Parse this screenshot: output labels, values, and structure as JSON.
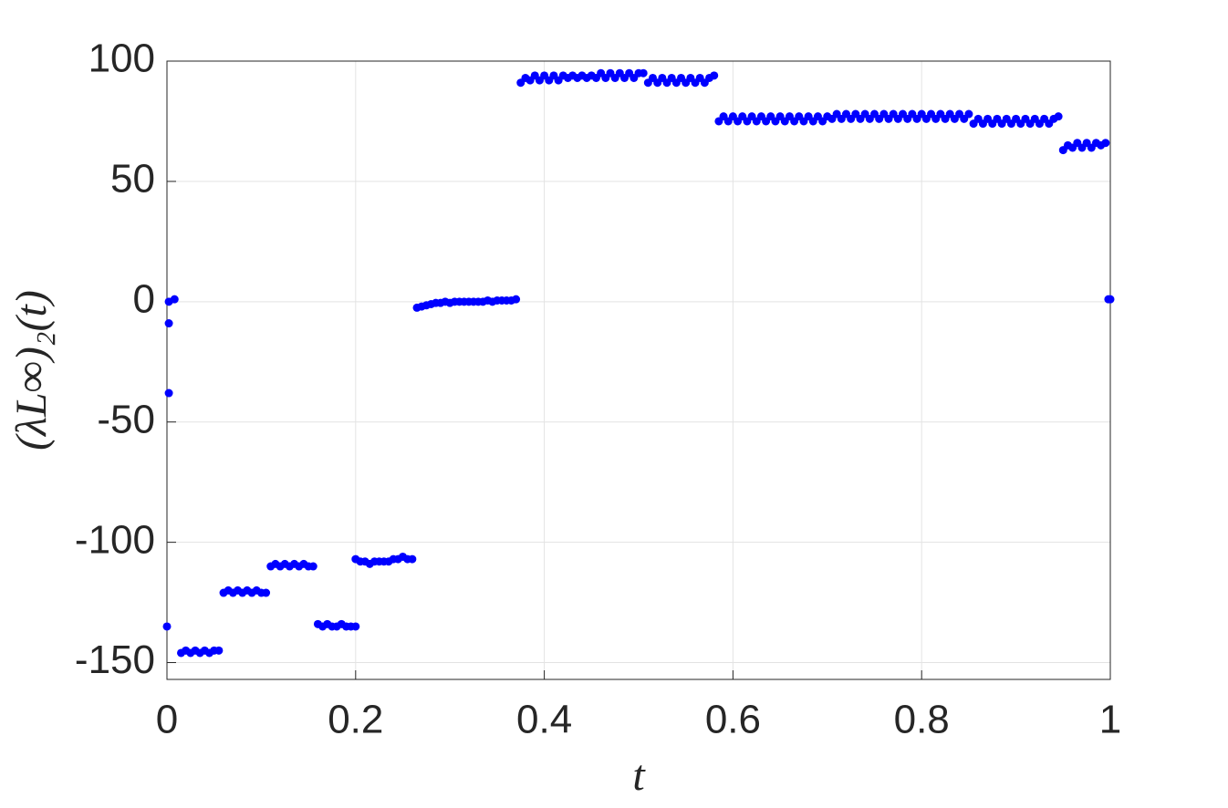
{
  "chart_data": {
    "type": "scatter",
    "x_label": "t",
    "y_label": "(λL∞)₂(t)",
    "xlim": [
      0,
      1
    ],
    "xticks": [
      0,
      0.2,
      0.4,
      0.6,
      0.8,
      1
    ],
    "ylim": [
      -157,
      100
    ],
    "yticks": [
      -150,
      -100,
      -50,
      0,
      50,
      100
    ],
    "grid": true,
    "series": [
      {
        "color": "#0000ff",
        "x": [
          0,
          0.002,
          0.002,
          0.002,
          0.008,
          0.015,
          0.02,
          0.025,
          0.03,
          0.035,
          0.04,
          0.045,
          0.05,
          0.055,
          0.06,
          0.065,
          0.07,
          0.075,
          0.08,
          0.085,
          0.09,
          0.095,
          0.1,
          0.105,
          0.11,
          0.115,
          0.12,
          0.125,
          0.13,
          0.135,
          0.14,
          0.145,
          0.15,
          0.155,
          0.16,
          0.165,
          0.17,
          0.175,
          0.18,
          0.185,
          0.19,
          0.195,
          0.2,
          0.2,
          0.205,
          0.21,
          0.215,
          0.22,
          0.225,
          0.23,
          0.235,
          0.24,
          0.245,
          0.25,
          0.255,
          0.26,
          0.265,
          0.27,
          0.275,
          0.28,
          0.285,
          0.29,
          0.295,
          0.3,
          0.305,
          0.31,
          0.315,
          0.32,
          0.325,
          0.33,
          0.335,
          0.34,
          0.345,
          0.35,
          0.355,
          0.36,
          0.365,
          0.37,
          0.375,
          0.38,
          0.385,
          0.39,
          0.395,
          0.4,
          0.405,
          0.41,
          0.415,
          0.42,
          0.425,
          0.43,
          0.435,
          0.44,
          0.445,
          0.45,
          0.455,
          0.46,
          0.465,
          0.47,
          0.475,
          0.48,
          0.485,
          0.49,
          0.495,
          0.5,
          0.505,
          0.51,
          0.515,
          0.52,
          0.525,
          0.53,
          0.535,
          0.54,
          0.545,
          0.55,
          0.555,
          0.56,
          0.565,
          0.57,
          0.575,
          0.58,
          0.585,
          0.59,
          0.595,
          0.6,
          0.605,
          0.61,
          0.615,
          0.62,
          0.625,
          0.63,
          0.635,
          0.64,
          0.645,
          0.65,
          0.655,
          0.66,
          0.665,
          0.67,
          0.675,
          0.68,
          0.685,
          0.69,
          0.695,
          0.7,
          0.705,
          0.71,
          0.715,
          0.72,
          0.725,
          0.73,
          0.735,
          0.74,
          0.745,
          0.75,
          0.755,
          0.76,
          0.765,
          0.77,
          0.775,
          0.78,
          0.785,
          0.79,
          0.795,
          0.8,
          0.805,
          0.81,
          0.815,
          0.82,
          0.825,
          0.83,
          0.835,
          0.84,
          0.845,
          0.85,
          0.855,
          0.86,
          0.865,
          0.87,
          0.875,
          0.88,
          0.885,
          0.89,
          0.895,
          0.9,
          0.905,
          0.91,
          0.915,
          0.92,
          0.925,
          0.93,
          0.935,
          0.94,
          0.945,
          0.95,
          0.955,
          0.96,
          0.965,
          0.97,
          0.975,
          0.98,
          0.985,
          0.99,
          0.995,
          0.998,
          1
        ],
        "values": [
          -135,
          -38,
          -9,
          0,
          1,
          -146,
          -145,
          -146,
          -145,
          -146,
          -145,
          -146,
          -145,
          -145,
          -121,
          -120,
          -121,
          -120,
          -121,
          -120,
          -121,
          -120,
          -121,
          -121,
          -110,
          -109,
          -110,
          -109,
          -110,
          -109,
          -110,
          -109,
          -110,
          -110,
          -134,
          -135,
          -134,
          -135,
          -135,
          -134,
          -135,
          -135,
          -135,
          -107,
          -108,
          -108,
          -109,
          -108,
          -108,
          -108,
          -108,
          -107,
          -107,
          -106,
          -107,
          -107,
          -2.5,
          -2,
          -1.5,
          -1,
          -0.5,
          -0.5,
          0,
          -0.5,
          0,
          0,
          0,
          0,
          0,
          0,
          0,
          0.5,
          0,
          0.5,
          0.5,
          0.5,
          0.5,
          1,
          91,
          93,
          92,
          94,
          92,
          94,
          92,
          94,
          92,
          94,
          93,
          94,
          93,
          94,
          93,
          94,
          93,
          95,
          93,
          95,
          93,
          95,
          93,
          95,
          93,
          95,
          95,
          91,
          93,
          91,
          93,
          91,
          93,
          91,
          93,
          91,
          93,
          91,
          93,
          91,
          93,
          94,
          75,
          77,
          75,
          77,
          75,
          77,
          75,
          77,
          75,
          77,
          75,
          77,
          75,
          77,
          75,
          77,
          75,
          77,
          75,
          77,
          75,
          77,
          75,
          77,
          76,
          78,
          76,
          78,
          76,
          78,
          76,
          78,
          76,
          78,
          76,
          78,
          76,
          78,
          76,
          78,
          76,
          78,
          76,
          78,
          76,
          78,
          76,
          78,
          76,
          78,
          76,
          78,
          76,
          78,
          74,
          76,
          74,
          76,
          74,
          76,
          74,
          76,
          74,
          76,
          74,
          76,
          74,
          76,
          74,
          76,
          74,
          76,
          77,
          63,
          65,
          64,
          66,
          64,
          66,
          64,
          66,
          65,
          66,
          1,
          1
        ]
      }
    ]
  }
}
